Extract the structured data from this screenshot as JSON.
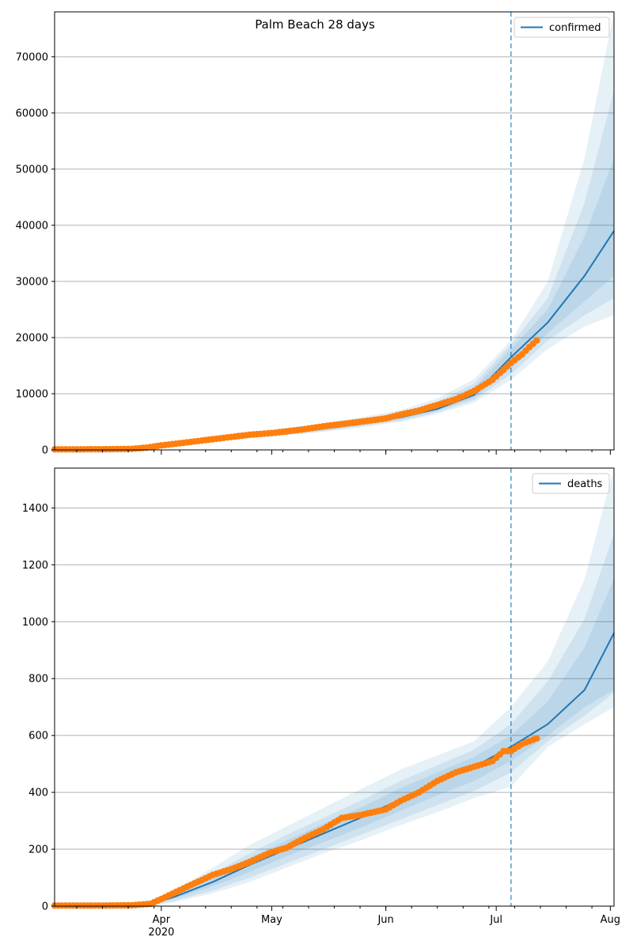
{
  "figure_title": "Palm Beach 28 days",
  "colors": {
    "model_line": "#1f77b4",
    "observed": "#ff7f0e",
    "band": "#1f77b4",
    "grid": "#b0b0b0",
    "vline": "#1f77b4"
  },
  "x_axis": {
    "range": [
      "2020-03-03",
      "2020-08-02"
    ],
    "major_ticks": [
      {
        "date": "2020-04-01",
        "label": "Apr",
        "sublabel": "2020"
      },
      {
        "date": "2020-05-01",
        "label": "May",
        "sublabel": ""
      },
      {
        "date": "2020-06-01",
        "label": "Jun",
        "sublabel": ""
      },
      {
        "date": "2020-07-01",
        "label": "Jul",
        "sublabel": ""
      },
      {
        "date": "2020-08-01",
        "label": "Aug",
        "sublabel": ""
      }
    ],
    "minor_tick_interval_days": 7,
    "forecast_start": "2020-07-05"
  },
  "chart_data": [
    {
      "type": "line",
      "legend": "confirmed",
      "legend_position": "top-right",
      "grid": "horizontal",
      "ylim": [
        0,
        78000
      ],
      "yticks": [
        0,
        10000,
        20000,
        30000,
        40000,
        50000,
        60000,
        70000
      ],
      "model": {
        "dates": [
          "2020-03-28",
          "2020-04-05",
          "2020-04-15",
          "2020-04-25",
          "2020-05-05",
          "2020-05-15",
          "2020-05-25",
          "2020-06-05",
          "2020-06-15",
          "2020-06-25",
          "2020-07-05",
          "2020-07-15",
          "2020-07-25",
          "2020-08-02"
        ],
        "values": [
          300,
          900,
          1700,
          2500,
          3100,
          3800,
          4700,
          5800,
          7300,
          9800,
          16500,
          22700,
          31000,
          39000
        ]
      },
      "bands": [
        {
          "lower": [
            200,
            800,
            1500,
            2100,
            2600,
            3200,
            4000,
            5000,
            6400,
            8400,
            12500,
            18000,
            22000,
            24000
          ],
          "upper": [
            500,
            1100,
            2100,
            3100,
            3900,
            4700,
            5800,
            7100,
            9200,
            12600,
            19500,
            30000,
            52000,
            78000
          ]
        },
        {
          "lower": [
            230,
            820,
            1550,
            2200,
            2700,
            3350,
            4200,
            5200,
            6700,
            8900,
            13500,
            19500,
            24000,
            27000
          ],
          "upper": [
            450,
            1050,
            1950,
            2900,
            3650,
            4450,
            5500,
            6700,
            8600,
            11800,
            18800,
            27000,
            44000,
            64000
          ]
        },
        {
          "lower": [
            260,
            850,
            1600,
            2300,
            2850,
            3500,
            4400,
            5450,
            7000,
            9300,
            14500,
            20800,
            26500,
            31000
          ],
          "upper": [
            400,
            1000,
            1850,
            2750,
            3450,
            4200,
            5200,
            6350,
            8100,
            11000,
            18000,
            25000,
            38000,
            52000
          ]
        }
      ],
      "observed": {
        "dates": [
          "2020-03-03",
          "2020-03-10",
          "2020-03-17",
          "2020-03-24",
          "2020-03-28",
          "2020-04-01",
          "2020-04-05",
          "2020-04-10",
          "2020-04-15",
          "2020-04-20",
          "2020-04-25",
          "2020-05-01",
          "2020-05-05",
          "2020-05-10",
          "2020-05-15",
          "2020-05-20",
          "2020-05-25",
          "2020-06-01",
          "2020-06-05",
          "2020-06-10",
          "2020-06-15",
          "2020-06-20",
          "2020-06-25",
          "2020-06-30",
          "2020-07-05",
          "2020-07-08",
          "2020-07-10",
          "2020-07-12"
        ],
        "values": [
          100,
          100,
          120,
          180,
          400,
          800,
          1100,
          1500,
          1900,
          2300,
          2700,
          3000,
          3300,
          3700,
          4200,
          4600,
          5000,
          5600,
          6300,
          7000,
          8000,
          9000,
          10500,
          12500,
          15500,
          17000,
          18300,
          19500
        ]
      }
    },
    {
      "type": "line",
      "legend": "deaths",
      "legend_position": "top-right",
      "grid": "horizontal",
      "ylim": [
        0,
        1540
      ],
      "yticks": [
        0,
        200,
        400,
        600,
        800,
        1000,
        1200,
        1400
      ],
      "model": {
        "dates": [
          "2020-03-30",
          "2020-04-05",
          "2020-04-15",
          "2020-04-25",
          "2020-05-05",
          "2020-05-15",
          "2020-05-25",
          "2020-06-05",
          "2020-06-15",
          "2020-06-25",
          "2020-07-05",
          "2020-07-15",
          "2020-07-25",
          "2020-08-02"
        ],
        "values": [
          10,
          35,
          85,
          145,
          200,
          255,
          310,
          375,
          435,
          490,
          560,
          640,
          760,
          960
        ]
      },
      "bands": [
        {
          "lower": [
            0,
            15,
            45,
            85,
            135,
            185,
            230,
            285,
            330,
            380,
            420,
            560,
            640,
            700
          ],
          "upper": [
            20,
            60,
            135,
            215,
            280,
            345,
            410,
            480,
            530,
            580,
            700,
            860,
            1150,
            1540
          ]
        },
        {
          "lower": [
            5,
            20,
            55,
            100,
            150,
            200,
            250,
            305,
            355,
            405,
            470,
            580,
            670,
            750
          ],
          "upper": [
            15,
            50,
            115,
            185,
            250,
            310,
            370,
            440,
            495,
            550,
            640,
            790,
            1010,
            1310
          ]
        },
        {
          "lower": [
            8,
            28,
            70,
            120,
            175,
            225,
            275,
            335,
            390,
            440,
            510,
            600,
            700,
            760
          ],
          "upper": [
            12,
            45,
            100,
            170,
            230,
            290,
            345,
            415,
            470,
            525,
            600,
            720,
            910,
            1150
          ]
        }
      ],
      "observed": {
        "dates": [
          "2020-03-03",
          "2020-03-10",
          "2020-03-17",
          "2020-03-24",
          "2020-03-29",
          "2020-04-01",
          "2020-04-05",
          "2020-04-10",
          "2020-04-15",
          "2020-04-20",
          "2020-04-25",
          "2020-05-01",
          "2020-05-05",
          "2020-05-10",
          "2020-05-15",
          "2020-05-20",
          "2020-05-25",
          "2020-06-01",
          "2020-06-05",
          "2020-06-10",
          "2020-06-15",
          "2020-06-20",
          "2020-06-25",
          "2020-06-30",
          "2020-07-03",
          "2020-07-05",
          "2020-07-08",
          "2020-07-12"
        ],
        "values": [
          2,
          2,
          2,
          3,
          8,
          25,
          50,
          80,
          110,
          130,
          155,
          190,
          205,
          240,
          270,
          310,
          320,
          340,
          370,
          400,
          440,
          470,
          490,
          510,
          545,
          545,
          570,
          590
        ]
      }
    }
  ]
}
